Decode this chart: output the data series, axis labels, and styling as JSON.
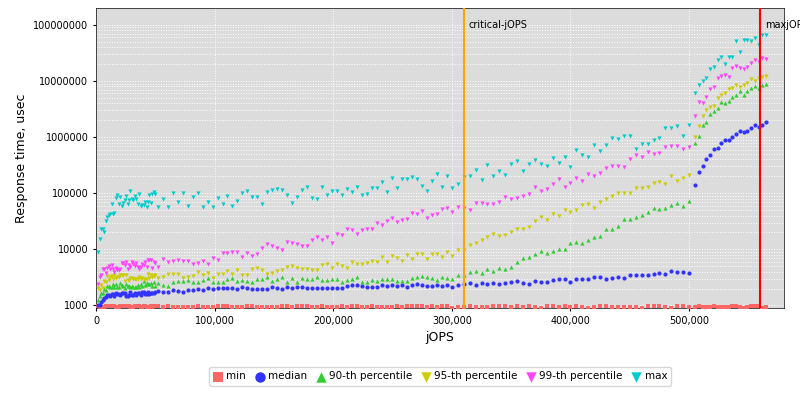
{
  "title": "",
  "xlabel": "jOPS",
  "ylabel": "Response time, usec",
  "xlim": [
    0,
    580000
  ],
  "ylim_log": [
    900,
    200000000
  ],
  "critical_jops": 310000,
  "max_jops": 560000,
  "critical_label": "critical-jOPS",
  "max_label": "maxjOPS",
  "critical_color": "#FFA500",
  "max_color": "#FF0000",
  "bg_color": "#DCDCDC",
  "grid_color": "#FFFFFF",
  "legend_entries": [
    "min",
    "median",
    "90-th percentile",
    "95-th percentile",
    "99-th percentile",
    "max"
  ],
  "series_colors": {
    "min": "#FF6666",
    "median": "#3333FF",
    "p90": "#33CC33",
    "p95": "#CCCC00",
    "p99": "#FF44FF",
    "max": "#00CCCC"
  }
}
